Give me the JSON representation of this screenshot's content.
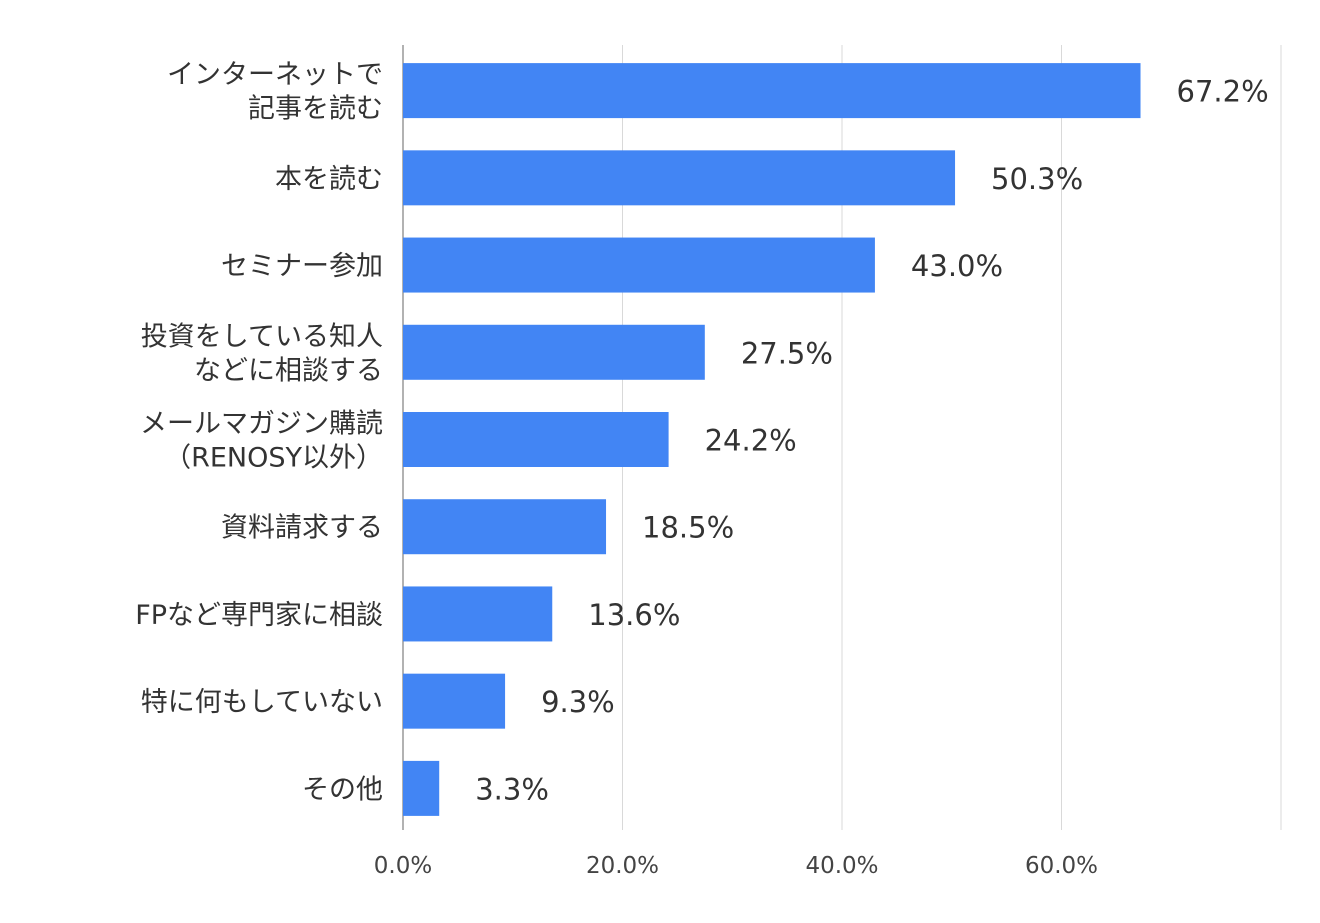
{
  "chart_data": {
    "type": "bar",
    "orientation": "horizontal",
    "categories": [
      [
        "インターネットで",
        "記事を読む"
      ],
      [
        "本を読む"
      ],
      [
        "セミナー参加"
      ],
      [
        "投資をしている知人",
        "などに相談する"
      ],
      [
        "メールマガジン購読",
        "（RENOSY以外）"
      ],
      [
        "資料請求する"
      ],
      [
        "FPなど専門家に相談"
      ],
      [
        "特に何もしていない"
      ],
      [
        "その他"
      ]
    ],
    "values": [
      67.2,
      50.3,
      43.0,
      27.5,
      24.2,
      18.5,
      13.6,
      9.3,
      3.3
    ],
    "data_labels": [
      "67.2%",
      "50.3%",
      "43.0%",
      "27.5%",
      "24.2%",
      "18.5%",
      "13.6%",
      "9.3%",
      "3.3%"
    ],
    "xlim": [
      0,
      80
    ],
    "xticks": [
      0,
      20,
      40,
      60,
      80
    ],
    "xtick_labels": [
      "0.0%",
      "20.0%",
      "40.0%",
      "60.0%",
      ""
    ],
    "grid": "vertical",
    "title": "",
    "xlabel": "",
    "ylabel": "",
    "colors": {
      "bar": "#4285F4",
      "grid": "#d9d9d9",
      "axis": "#999999",
      "text": "#333333"
    }
  }
}
